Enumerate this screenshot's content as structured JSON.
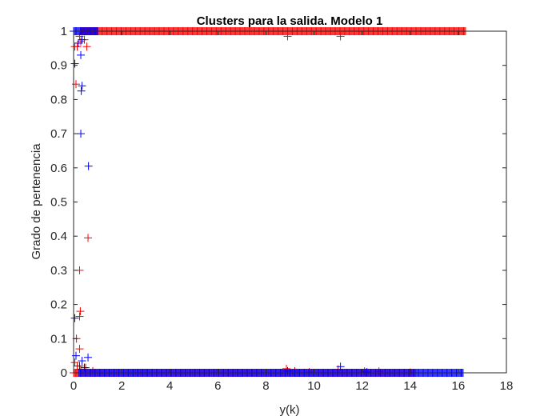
{
  "chart_data": {
    "type": "scatter",
    "title": "Clusters para  la salida. Modelo 1",
    "xlabel": "y(k)",
    "ylabel": "Grado de pertenencia",
    "xlim": [
      0,
      18
    ],
    "ylim": [
      0,
      1
    ],
    "xticks": [
      "0",
      "2",
      "4",
      "6",
      "8",
      "10",
      "12",
      "14",
      "16",
      "18"
    ],
    "yticks": [
      "0",
      "0.1",
      "0.2",
      "0.3",
      "0.4",
      "0.5",
      "0.6",
      "0.7",
      "0.8",
      "0.9",
      "1"
    ],
    "grid": false,
    "box": true,
    "marker": "+",
    "series": [
      {
        "color": "#ff0000",
        "points": [
          [
            0.05,
            0.955
          ],
          [
            0.1,
            0.845
          ],
          [
            0.15,
            0.955
          ],
          [
            0.25,
            0.985
          ],
          [
            0.3,
            0.97
          ],
          [
            0.45,
            0.975
          ],
          [
            0.55,
            0.955
          ],
          [
            0.6,
            0.395
          ],
          [
            0.25,
            0.3
          ],
          [
            0.28,
            0.18
          ],
          [
            0.25,
            0.165
          ],
          [
            0.12,
            0.1
          ],
          [
            0.25,
            0.07
          ],
          [
            0.05,
            0.03
          ],
          [
            0.15,
            0.02
          ],
          [
            0.3,
            0.01
          ],
          [
            0.5,
            0.015
          ],
          [
            0.8,
            0.005
          ],
          [
            8.9,
            0.985
          ],
          [
            11.1,
            0.985
          ],
          [
            8.85,
            0.012
          ],
          [
            9.2,
            0.005
          ],
          [
            9.8,
            0.002
          ],
          [
            11.0,
            0.01
          ],
          [
            12.1,
            0.004
          ],
          [
            12.7,
            0.004
          ],
          [
            14.0,
            0.001
          ]
        ],
        "dense_bands": [
          {
            "y": 1.0,
            "x_from": 0.3,
            "x_to": 16.3
          },
          {
            "y": 0.0,
            "x_from": 0.0,
            "x_to": 14.2
          }
        ]
      },
      {
        "color": "#0000ff",
        "points": [
          [
            0.05,
            0.905
          ],
          [
            0.2,
            0.965
          ],
          [
            0.3,
            0.93
          ],
          [
            0.35,
            0.975
          ],
          [
            0.35,
            0.84
          ],
          [
            0.32,
            0.825
          ],
          [
            0.3,
            0.7
          ],
          [
            0.62,
            0.605
          ],
          [
            0.05,
            0.16
          ],
          [
            0.1,
            0.05
          ],
          [
            0.35,
            0.035
          ],
          [
            0.6,
            0.045
          ],
          [
            0.25,
            0.02
          ],
          [
            0.45,
            0.015
          ],
          [
            8.9,
            0.005
          ],
          [
            11.1,
            0.018
          ],
          [
            12.2,
            0.002
          ]
        ],
        "dense_bands": [
          {
            "y": 1.0,
            "x_from": 0.0,
            "x_to": 1.0
          },
          {
            "y": 0.0,
            "x_from": 0.2,
            "x_to": 16.2
          }
        ]
      }
    ]
  }
}
